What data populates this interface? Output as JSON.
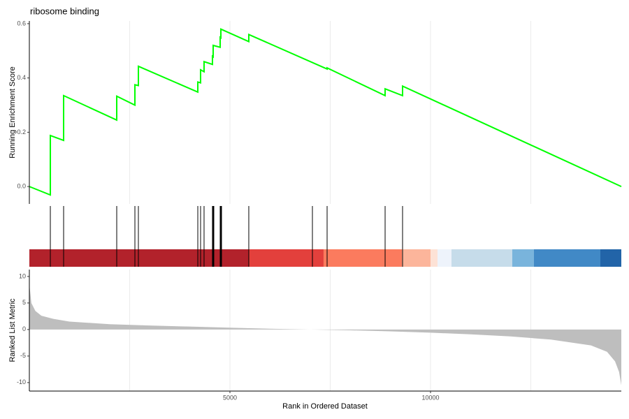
{
  "chart_data": [
    {
      "type": "line",
      "title": "ribosome binding",
      "ylabel": "Running Enrichment Score",
      "color": "#00ff00",
      "x": [
        0,
        523,
        523,
        854,
        854,
        2178,
        2178,
        2631,
        2631,
        2718,
        2718,
        4199,
        4199,
        4268,
        4268,
        4355,
        4355,
        4564,
        4564,
        4582,
        4582,
        4756,
        4756,
        4774,
        4774,
        5470,
        5470,
        7422,
        7422,
        8868,
        8868,
        9303,
        9303,
        14756
      ],
      "values": [
        0,
        -0.031,
        0.188,
        0.17,
        0.335,
        0.245,
        0.333,
        0.3,
        0.375,
        0.372,
        0.443,
        0.348,
        0.385,
        0.382,
        0.43,
        0.423,
        0.46,
        0.45,
        0.48,
        0.478,
        0.52,
        0.513,
        0.55,
        0.548,
        0.58,
        0.534,
        0.56,
        0.433,
        0.437,
        0.335,
        0.36,
        0.335,
        0.37,
        0
      ],
      "xlim": [
        0,
        14756
      ],
      "ylim": [
        -0.064,
        0.61
      ],
      "yticks": [
        {
          "value": 0,
          "label": "0.0"
        },
        0.2,
        0.4,
        0.6
      ],
      "xgrid": [
        2500,
        5000,
        7500,
        10000,
        12500
      ]
    },
    {
      "type": "rug",
      "color": "#000000",
      "x": [
        523,
        854,
        2178,
        2631,
        2718,
        4199,
        4268,
        4355,
        4564,
        4582,
        4599,
        4756,
        4774,
        4791,
        5470,
        7056,
        7422,
        8868,
        9303
      ],
      "xlim": [
        0,
        14756
      ],
      "band": {
        "breaks": [
          0,
          5470,
          7334,
          9286,
          10000,
          10174,
          10523,
          12038,
          12578,
          14233,
          14756
        ],
        "colors": [
          "#b2222b",
          "#e3403c",
          "#fb7b5e",
          "#fcb59b",
          "#fde2d6",
          "#eef3fb",
          "#c6dcea",
          "#79b4dc",
          "#4189c6",
          "#2264a8"
        ]
      }
    },
    {
      "type": "area",
      "ylabel": "Ranked List Metric",
      "xlabel": "Rank in Ordered Dataset",
      "color": "#bebebe",
      "x": [
        0,
        50,
        150,
        300,
        600,
        1000,
        2000,
        3000,
        4000,
        5000,
        6000,
        7000,
        8000,
        9000,
        10000,
        11000,
        12000,
        13000,
        14000,
        14400,
        14600,
        14700,
        14756
      ],
      "values": [
        8.5,
        5,
        3.5,
        2.6,
        2,
        1.5,
        1.0,
        0.75,
        0.55,
        0.35,
        0.15,
        0,
        -0.15,
        -0.35,
        -0.6,
        -0.9,
        -1.3,
        -1.9,
        -3.0,
        -4.2,
        -6,
        -8,
        -10.5
      ],
      "xlim": [
        0,
        14756
      ],
      "ylim": [
        -11.6,
        11.3
      ],
      "yticks": [
        10,
        5,
        0,
        -5,
        -10
      ],
      "xticks": [
        5000,
        10000
      ],
      "xgrid": [
        2500,
        5000,
        7500,
        10000,
        12500
      ]
    }
  ]
}
